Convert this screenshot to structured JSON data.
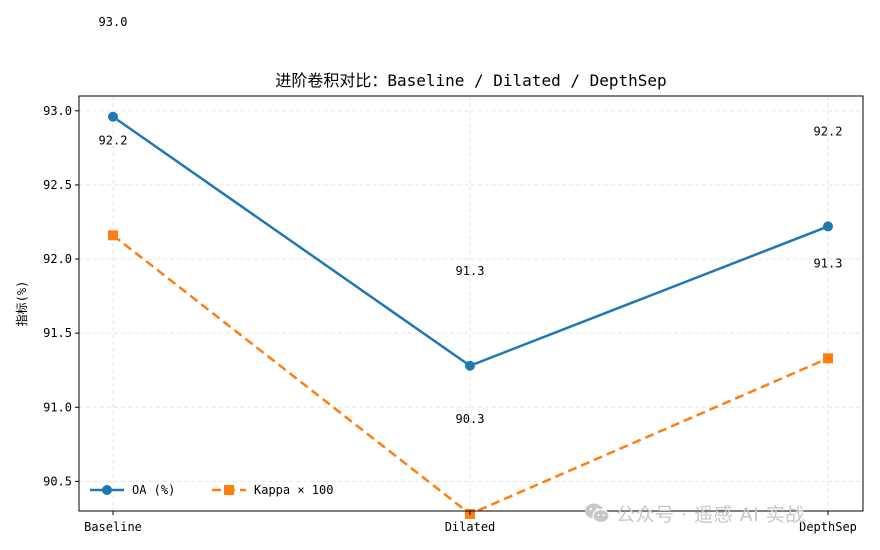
{
  "chart_data": {
    "type": "line",
    "title": "进阶卷积对比：Baseline / Dilated / DepthSep",
    "xlabel": "",
    "ylabel": "指标(%)",
    "categories": [
      "Baseline",
      "Dilated",
      "DepthSep"
    ],
    "ylim": [
      90.3,
      93.1
    ],
    "yticks": [
      90.5,
      91.0,
      91.5,
      92.0,
      92.5,
      93.0
    ],
    "ytick_labels": [
      "90.5",
      "91.0",
      "91.5",
      "92.0",
      "92.5",
      "93.0"
    ],
    "grid": true,
    "legend": "bottom-left",
    "series": [
      {
        "name": "OA (%)",
        "values": [
          92.96,
          91.28,
          92.22
        ],
        "labels": [
          "93.0",
          "91.3",
          "92.2"
        ],
        "color": "#1f77b4",
        "marker": "circle",
        "line": "solid"
      },
      {
        "name": "Kappa × 100",
        "values": [
          92.16,
          90.28,
          91.33
        ],
        "labels": [
          "92.2",
          "90.3",
          "91.3"
        ],
        "color": "#ff7f0e",
        "marker": "square",
        "line": "dashed"
      }
    ]
  },
  "watermark": {
    "icon": "wechat-icon",
    "text": "公众号 · 遥感 AI 实战"
  }
}
